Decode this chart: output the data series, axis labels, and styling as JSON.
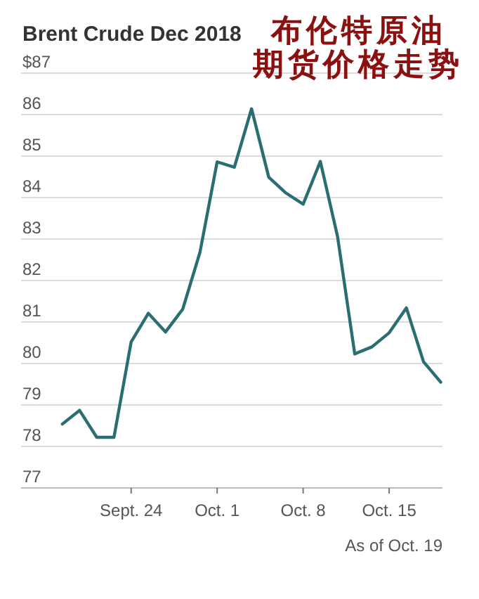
{
  "chart_data": {
    "type": "line",
    "title": "Brent Crude Dec 2018",
    "subtitle": "布伦特原油期货价格走势",
    "annotations": [
      "As of Oct. 19"
    ],
    "categories": [
      null,
      null,
      null,
      null,
      "Sept. 24",
      null,
      null,
      null,
      null,
      "Oct. 1",
      null,
      null,
      null,
      null,
      "Oct. 8",
      null,
      null,
      null,
      null,
      "Oct. 15",
      null,
      null,
      null
    ],
    "series": [
      {
        "color": "#2a6e72",
        "values": [
          78.54,
          78.87,
          78.22,
          78.22,
          80.52,
          81.21,
          80.76,
          81.31,
          82.68,
          84.86,
          84.73,
          86.14,
          84.49,
          84.11,
          83.84,
          84.87,
          83.06,
          80.23,
          80.4,
          80.74,
          81.34,
          80.04,
          79.55
        ]
      }
    ],
    "ylim": [
      77,
      87
    ],
    "yticks": [
      {
        "value": 87,
        "label": "$87"
      },
      86,
      85,
      84,
      83,
      82,
      81,
      80,
      79,
      78,
      77
    ],
    "grid": "y",
    "marker": "none",
    "line_style": "solid"
  }
}
